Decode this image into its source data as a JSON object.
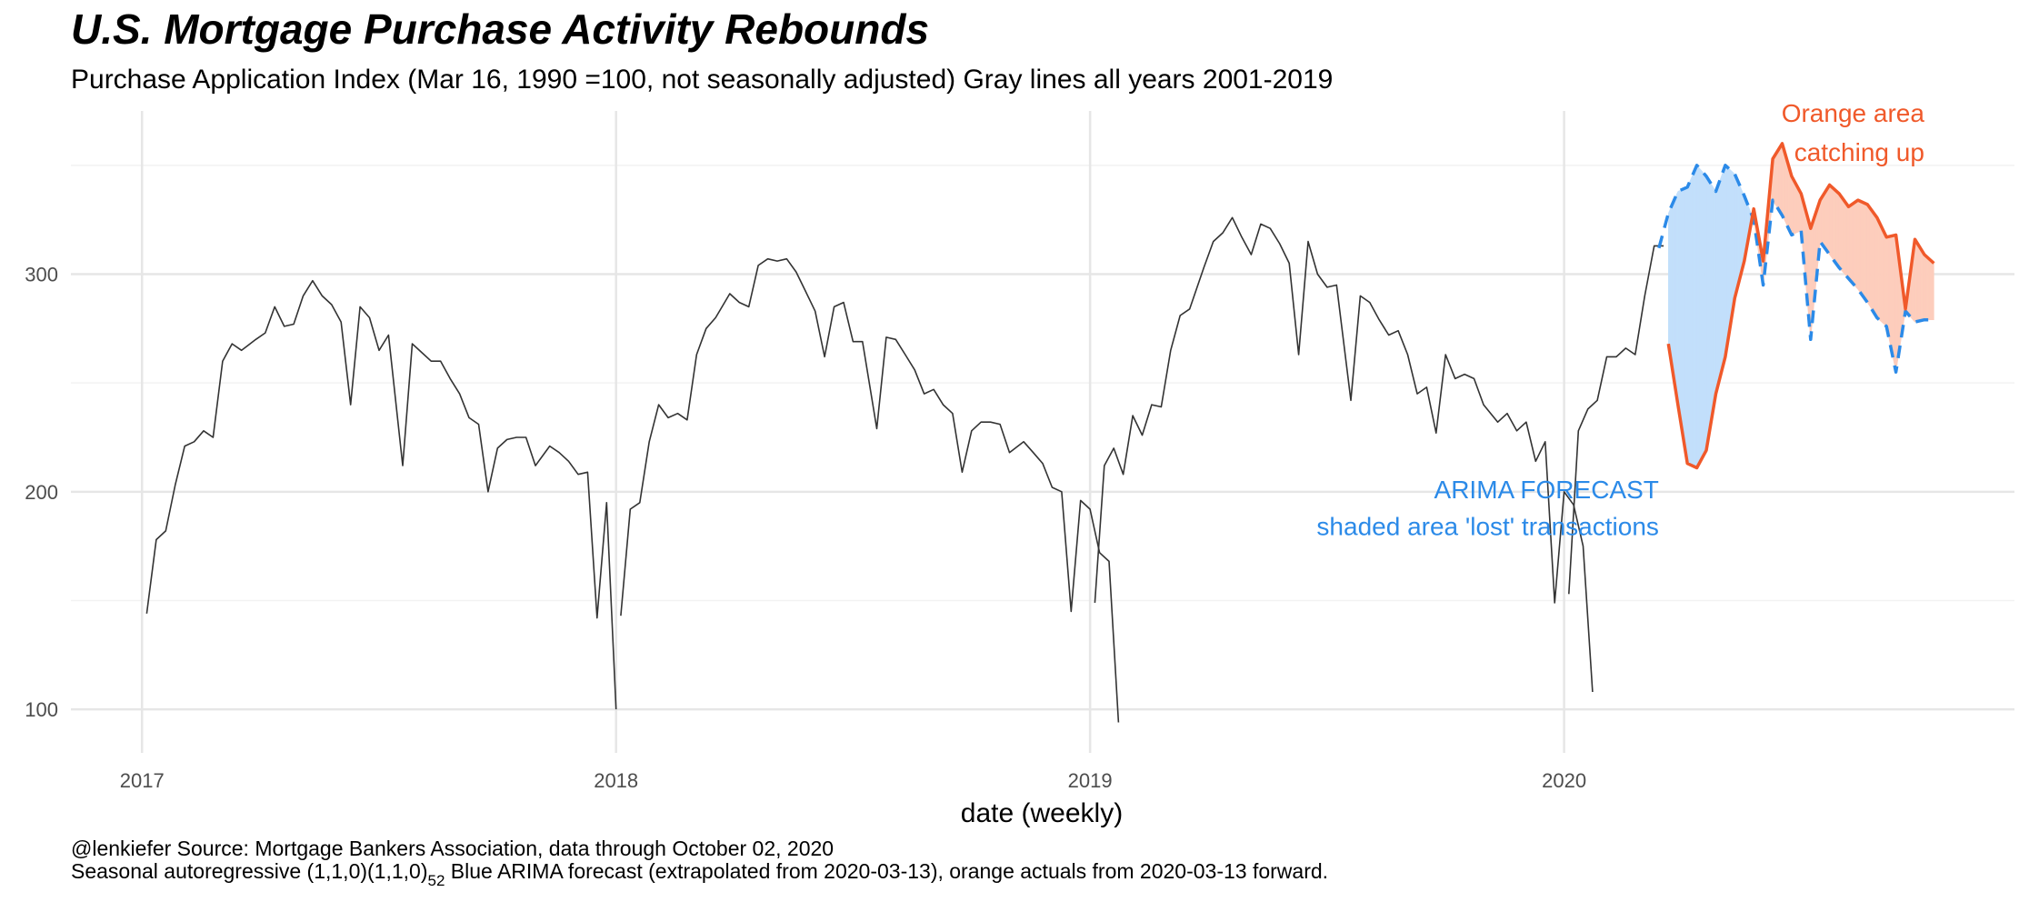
{
  "chart_data": {
    "type": "line",
    "title": "U.S. Mortgage Purchase Activity Rebounds",
    "subtitle": "Purchase Application Index (Mar 16, 1990 =100, not seasonally adjusted) Gray lines all years 2001-2019",
    "xlabel": "date (weekly)",
    "ylabel": "",
    "xlim": [
      2016.85,
      2020.95
    ],
    "ylim": [
      80,
      375
    ],
    "x_ticks": [
      {
        "value": 2017,
        "label": "2017"
      },
      {
        "value": 2018,
        "label": "2018"
      },
      {
        "value": 2019,
        "label": "2019"
      },
      {
        "value": 2020,
        "label": "2020"
      }
    ],
    "y_ticks": [
      {
        "value": 100,
        "label": "100"
      },
      {
        "value": 200,
        "label": "200"
      },
      {
        "value": 300,
        "label": "300"
      }
    ],
    "y_minor_ticks": [
      150,
      250,
      350
    ],
    "grid": true,
    "series": [
      {
        "color": "#333333",
        "style": "solid",
        "points": [
          [
            2017.01,
            144
          ],
          [
            2017.03,
            178
          ],
          [
            2017.05,
            182
          ],
          [
            2017.07,
            203
          ],
          [
            2017.09,
            221
          ],
          [
            2017.11,
            223
          ],
          [
            2017.13,
            228
          ],
          [
            2017.15,
            225
          ],
          [
            2017.17,
            260
          ],
          [
            2017.19,
            268
          ],
          [
            2017.21,
            265
          ],
          [
            2017.24,
            270
          ],
          [
            2017.26,
            273
          ],
          [
            2017.28,
            285
          ],
          [
            2017.3,
            276
          ],
          [
            2017.32,
            277
          ],
          [
            2017.34,
            290
          ],
          [
            2017.36,
            297
          ],
          [
            2017.38,
            290
          ],
          [
            2017.4,
            286
          ],
          [
            2017.42,
            278
          ],
          [
            2017.44,
            240
          ],
          [
            2017.46,
            285
          ],
          [
            2017.48,
            280
          ],
          [
            2017.5,
            265
          ],
          [
            2017.52,
            272
          ],
          [
            2017.55,
            212
          ],
          [
            2017.57,
            268
          ],
          [
            2017.59,
            264
          ],
          [
            2017.61,
            260
          ],
          [
            2017.63,
            260
          ],
          [
            2017.65,
            252
          ],
          [
            2017.67,
            245
          ],
          [
            2017.69,
            234
          ],
          [
            2017.71,
            231
          ],
          [
            2017.73,
            200
          ],
          [
            2017.75,
            220
          ],
          [
            2017.77,
            224
          ],
          [
            2017.79,
            225
          ],
          [
            2017.81,
            225
          ],
          [
            2017.83,
            212
          ],
          [
            2017.86,
            221
          ],
          [
            2017.88,
            218
          ],
          [
            2017.9,
            214
          ],
          [
            2017.92,
            208
          ],
          [
            2017.94,
            209
          ],
          [
            2017.96,
            142
          ],
          [
            2017.98,
            195
          ],
          [
            2018.0,
            100
          ]
        ]
      },
      {
        "color": "#333333",
        "style": "solid",
        "points": [
          [
            2018.01,
            143
          ],
          [
            2018.03,
            192
          ],
          [
            2018.05,
            195
          ],
          [
            2018.07,
            223
          ],
          [
            2018.09,
            240
          ],
          [
            2018.11,
            234
          ],
          [
            2018.13,
            236
          ],
          [
            2018.15,
            233
          ],
          [
            2018.17,
            263
          ],
          [
            2018.19,
            275
          ],
          [
            2018.21,
            280
          ],
          [
            2018.24,
            291
          ],
          [
            2018.26,
            287
          ],
          [
            2018.28,
            285
          ],
          [
            2018.3,
            304
          ],
          [
            2018.32,
            307
          ],
          [
            2018.34,
            306
          ],
          [
            2018.36,
            307
          ],
          [
            2018.38,
            301
          ],
          [
            2018.4,
            292
          ],
          [
            2018.42,
            283
          ],
          [
            2018.44,
            262
          ],
          [
            2018.46,
            285
          ],
          [
            2018.48,
            287
          ],
          [
            2018.5,
            269
          ],
          [
            2018.52,
            269
          ],
          [
            2018.55,
            229
          ],
          [
            2018.57,
            271
          ],
          [
            2018.59,
            270
          ],
          [
            2018.61,
            263
          ],
          [
            2018.63,
            256
          ],
          [
            2018.65,
            245
          ],
          [
            2018.67,
            247
          ],
          [
            2018.69,
            240
          ],
          [
            2018.71,
            236
          ],
          [
            2018.73,
            209
          ],
          [
            2018.75,
            228
          ],
          [
            2018.77,
            232
          ],
          [
            2018.79,
            232
          ],
          [
            2018.81,
            231
          ],
          [
            2018.83,
            218
          ],
          [
            2018.86,
            223
          ],
          [
            2018.88,
            218
          ],
          [
            2018.9,
            213
          ],
          [
            2018.92,
            202
          ],
          [
            2018.94,
            200
          ],
          [
            2018.96,
            145
          ],
          [
            2018.98,
            196
          ],
          [
            2019.0,
            192
          ],
          [
            2019.02,
            172
          ],
          [
            2019.04,
            168
          ],
          [
            2019.06,
            94
          ]
        ]
      },
      {
        "color": "#333333",
        "style": "solid",
        "points": [
          [
            2019.01,
            149
          ],
          [
            2019.03,
            212
          ],
          [
            2019.05,
            220
          ],
          [
            2019.07,
            208
          ],
          [
            2019.09,
            235
          ],
          [
            2019.11,
            226
          ],
          [
            2019.13,
            240
          ],
          [
            2019.15,
            239
          ],
          [
            2019.17,
            265
          ],
          [
            2019.19,
            281
          ],
          [
            2019.21,
            284
          ],
          [
            2019.24,
            303
          ],
          [
            2019.26,
            315
          ],
          [
            2019.28,
            319
          ],
          [
            2019.3,
            326
          ],
          [
            2019.32,
            317
          ],
          [
            2019.34,
            309
          ],
          [
            2019.36,
            323
          ],
          [
            2019.38,
            321
          ],
          [
            2019.4,
            314
          ],
          [
            2019.42,
            305
          ],
          [
            2019.44,
            263
          ],
          [
            2019.46,
            315
          ],
          [
            2019.48,
            300
          ],
          [
            2019.5,
            294
          ],
          [
            2019.52,
            295
          ],
          [
            2019.55,
            242
          ],
          [
            2019.57,
            290
          ],
          [
            2019.59,
            287
          ],
          [
            2019.61,
            279
          ],
          [
            2019.63,
            272
          ],
          [
            2019.65,
            274
          ],
          [
            2019.67,
            263
          ],
          [
            2019.69,
            245
          ],
          [
            2019.71,
            248
          ],
          [
            2019.73,
            227
          ],
          [
            2019.75,
            263
          ],
          [
            2019.77,
            252
          ],
          [
            2019.79,
            254
          ],
          [
            2019.81,
            252
          ],
          [
            2019.83,
            240
          ],
          [
            2019.86,
            232
          ],
          [
            2019.88,
            236
          ],
          [
            2019.9,
            228
          ],
          [
            2019.92,
            232
          ],
          [
            2019.94,
            214
          ],
          [
            2019.96,
            223
          ],
          [
            2019.98,
            149
          ],
          [
            2020.0,
            200
          ],
          [
            2020.02,
            194
          ],
          [
            2020.04,
            175
          ],
          [
            2020.06,
            108
          ]
        ]
      },
      {
        "color": "#333333",
        "style": "solid",
        "points": [
          [
            2020.01,
            153
          ],
          [
            2020.03,
            228
          ],
          [
            2020.05,
            238
          ],
          [
            2020.07,
            242
          ],
          [
            2020.09,
            262
          ],
          [
            2020.11,
            262
          ],
          [
            2020.13,
            266
          ],
          [
            2020.15,
            263
          ],
          [
            2020.17,
            290
          ],
          [
            2020.19,
            313
          ],
          [
            2020.21,
            313
          ]
        ]
      },
      {
        "color": "#2b8ae8",
        "style": "dashed",
        "points": [
          [
            2020.2,
            312
          ],
          [
            2020.22,
            328
          ],
          [
            2020.24,
            338
          ],
          [
            2020.26,
            340
          ],
          [
            2020.28,
            350
          ],
          [
            2020.3,
            345
          ],
          [
            2020.32,
            338
          ],
          [
            2020.34,
            350
          ],
          [
            2020.36,
            346
          ],
          [
            2020.38,
            336
          ],
          [
            2020.4,
            325
          ],
          [
            2020.42,
            295
          ],
          [
            2020.44,
            334
          ],
          [
            2020.46,
            327
          ],
          [
            2020.48,
            318
          ],
          [
            2020.5,
            320
          ],
          [
            2020.52,
            270
          ],
          [
            2020.54,
            315
          ],
          [
            2020.56,
            309
          ],
          [
            2020.58,
            303
          ],
          [
            2020.6,
            298
          ],
          [
            2020.62,
            293
          ],
          [
            2020.64,
            287
          ],
          [
            2020.66,
            280
          ],
          [
            2020.68,
            276
          ],
          [
            2020.7,
            255
          ],
          [
            2020.72,
            283
          ],
          [
            2020.74,
            278
          ],
          [
            2020.76,
            279
          ],
          [
            2020.78,
            279
          ]
        ]
      },
      {
        "color": "#f0592a",
        "style": "solid",
        "points": [
          [
            2020.22,
            268
          ],
          [
            2020.24,
            240
          ],
          [
            2020.26,
            213
          ],
          [
            2020.28,
            211
          ],
          [
            2020.3,
            219
          ],
          [
            2020.32,
            245
          ],
          [
            2020.34,
            262
          ],
          [
            2020.36,
            289
          ],
          [
            2020.38,
            306
          ],
          [
            2020.4,
            330
          ],
          [
            2020.42,
            306
          ],
          [
            2020.44,
            353
          ],
          [
            2020.46,
            360
          ],
          [
            2020.48,
            345
          ],
          [
            2020.5,
            337
          ],
          [
            2020.52,
            321
          ],
          [
            2020.54,
            334
          ],
          [
            2020.56,
            341
          ],
          [
            2020.58,
            337
          ],
          [
            2020.6,
            331
          ],
          [
            2020.62,
            334
          ],
          [
            2020.64,
            332
          ],
          [
            2020.66,
            326
          ],
          [
            2020.68,
            317
          ],
          [
            2020.7,
            318
          ],
          [
            2020.72,
            284
          ],
          [
            2020.74,
            316
          ],
          [
            2020.76,
            309
          ],
          [
            2020.78,
            305
          ]
        ]
      }
    ],
    "shaded_region": {
      "blue_fill": "#c2dffb",
      "orange_fill": "#fdcdbc"
    },
    "annotations": [
      {
        "text": "ARIMA FORECAST",
        "x": 2020.2,
        "y": 197,
        "anchor": "end",
        "color": "#2b8ae8"
      },
      {
        "text": "shaded area 'lost' transactions",
        "x": 2020.2,
        "y": 180,
        "anchor": "end",
        "color": "#2b8ae8"
      },
      {
        "text": "Orange area",
        "x": 2020.76,
        "y": 370,
        "anchor": "end",
        "color": "#f0592a"
      },
      {
        "text": "catching up",
        "x": 2020.76,
        "y": 352,
        "anchor": "end",
        "color": "#f0592a"
      }
    ],
    "caption_line1": "@lenkiefer Source: Mortgage Bankers Association, data through October 02, 2020",
    "caption_line2_pre": "Seasonal autoregressive (1,1,0)(1,1,0)",
    "caption_line2_sub": "52",
    "caption_line2_post": " Blue ARIMA forecast (extrapolated from 2020-03-13), orange actuals from 2020-03-13 forward."
  }
}
